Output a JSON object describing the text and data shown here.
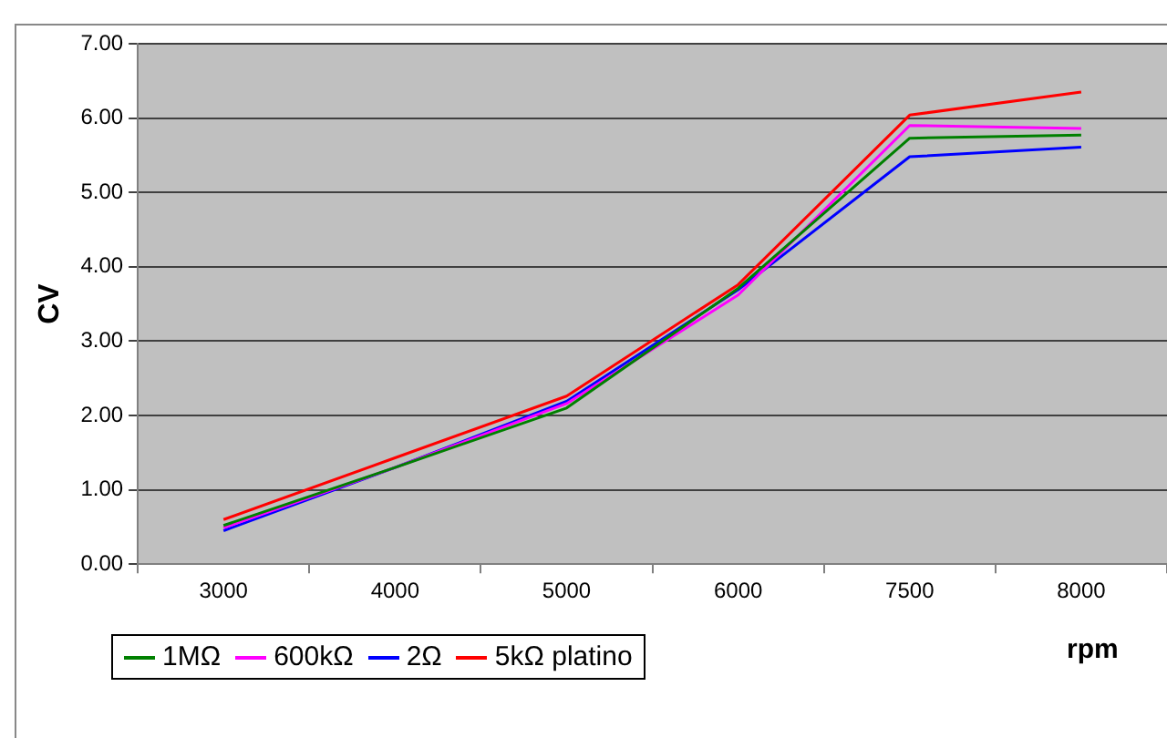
{
  "chart_data": {
    "type": "line",
    "ylabel": "CV",
    "xlabel": "rpm",
    "categories": [
      "3000",
      "4000",
      "5000",
      "6000",
      "7500",
      "8000"
    ],
    "series": [
      {
        "name": "1MΩ",
        "color": "#008000",
        "values": [
          0.52,
          1.3,
          2.1,
          3.71,
          5.73,
          5.77
        ]
      },
      {
        "name": "600kΩ",
        "color": "#ff00ff",
        "values": [
          0.49,
          1.3,
          2.16,
          3.62,
          5.9,
          5.86
        ]
      },
      {
        "name": "2Ω",
        "color": "#0000ff",
        "values": [
          0.45,
          1.3,
          2.19,
          3.69,
          5.48,
          5.61
        ]
      },
      {
        "name": "5kΩ platino",
        "color": "#ff0000",
        "values": [
          0.6,
          1.43,
          2.26,
          3.76,
          6.04,
          6.35
        ]
      }
    ],
    "ylim": [
      0,
      7
    ],
    "yticks": [
      {
        "value": 0,
        "label": "0.00"
      },
      {
        "value": 1,
        "label": "1.00"
      },
      {
        "value": 2,
        "label": "2.00"
      },
      {
        "value": 3,
        "label": "3.00"
      },
      {
        "value": 4,
        "label": "4.00"
      },
      {
        "value": 5,
        "label": "5.00"
      },
      {
        "value": 6,
        "label": "6.00"
      },
      {
        "value": 7,
        "label": "7.00"
      }
    ],
    "grid": "y",
    "legend": "bottom left",
    "marker": "none",
    "line_style": "solid"
  }
}
